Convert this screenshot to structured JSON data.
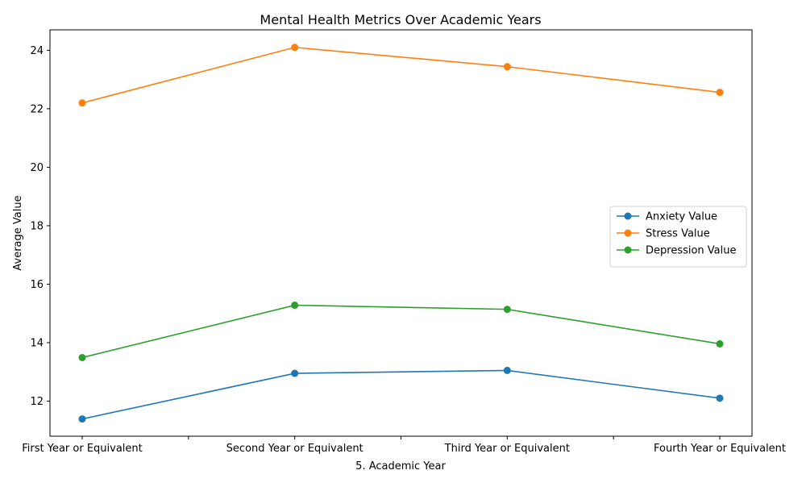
{
  "chart_data": {
    "type": "line",
    "title": "Mental Health Metrics Over Academic Years",
    "xlabel": "5. Academic Year",
    "ylabel": "Average Value",
    "categories": [
      "First Year or Equivalent",
      "Second Year or Equivalent",
      "Third Year or Equivalent",
      "Fourth Year or Equivalent"
    ],
    "ylim": [
      10.8,
      24.7
    ],
    "yticks": [
      12,
      14,
      16,
      18,
      20,
      22,
      24
    ],
    "grid": false,
    "legend_position": "center-right",
    "markers": "circle",
    "series": [
      {
        "name": "Anxiety Value",
        "color": "#1f77b4",
        "values": [
          11.39,
          12.95,
          13.05,
          12.1
        ]
      },
      {
        "name": "Stress Value",
        "color": "#ff7f0e",
        "values": [
          22.2,
          24.1,
          23.44,
          22.56
        ]
      },
      {
        "name": "Depression Value",
        "color": "#2ca02c",
        "values": [
          13.49,
          15.28,
          15.14,
          13.96
        ]
      }
    ]
  }
}
